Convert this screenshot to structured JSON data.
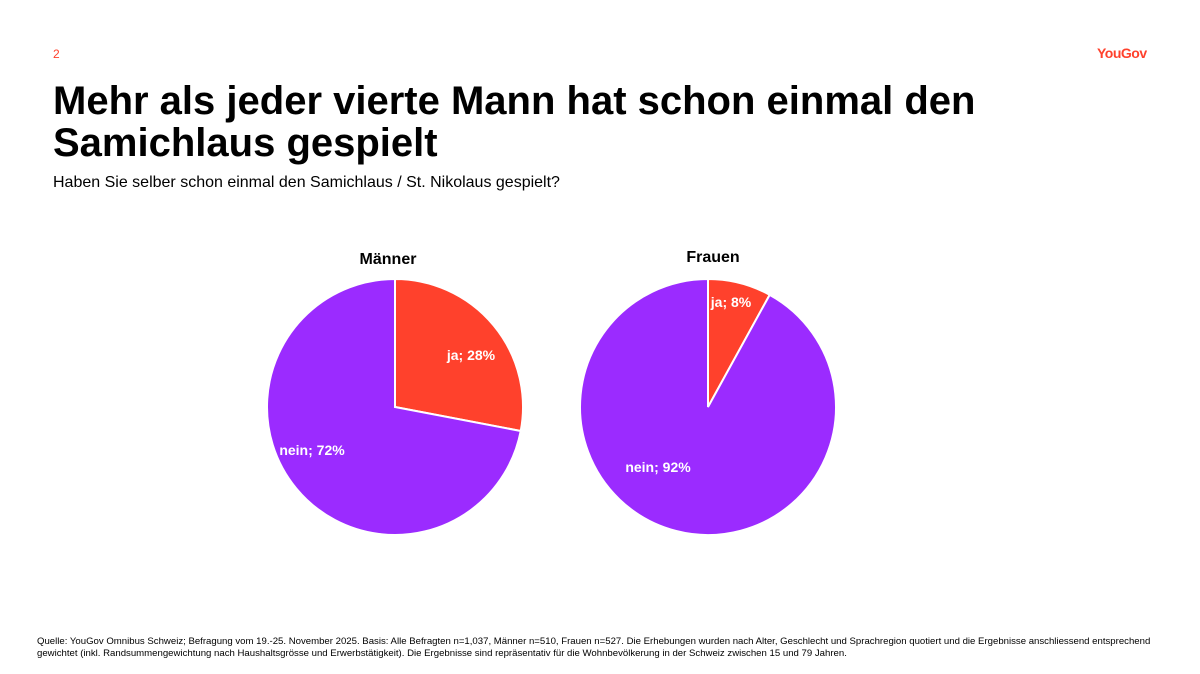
{
  "page_number": "2",
  "logo": "YouGov",
  "title": "Mehr als jeder vierte Mann hat schon einmal den Samichlaus gespielt",
  "subtitle": "Haben Sie selber schon einmal den Samichlaus / St. Nikolaus gespielt?",
  "colors": {
    "ja": "#ff412c",
    "nein": "#9b2bff",
    "accent": "#ff412c"
  },
  "chart_data": [
    {
      "type": "pie",
      "title": "Männer",
      "categories": [
        "ja",
        "nein"
      ],
      "values": [
        28,
        72
      ],
      "labels": [
        "ja; 28%",
        "nein; 72%"
      ]
    },
    {
      "type": "pie",
      "title": "Frauen",
      "categories": [
        "ja",
        "nein"
      ],
      "values": [
        8,
        92
      ],
      "labels": [
        "ja; 8%",
        "nein; 92%"
      ]
    }
  ],
  "footer": "Quelle: YouGov Omnibus Schweiz; Befragung vom 19.-25. November 2025. Basis: Alle Befragten n=1,037, Männer n=510, Frauen n=527. Die Erhebungen wurden nach Alter, Geschlecht und Sprachregion quotiert und die Ergebnisse anschliessend entsprechend gewichtet (inkl. Randsummengewichtung nach Haushaltsgrösse und Erwerbstätigkeit). Die Ergebnisse sind repräsentativ für die Wohnbevölkerung in der Schweiz zwischen 15 und 79 Jahren."
}
